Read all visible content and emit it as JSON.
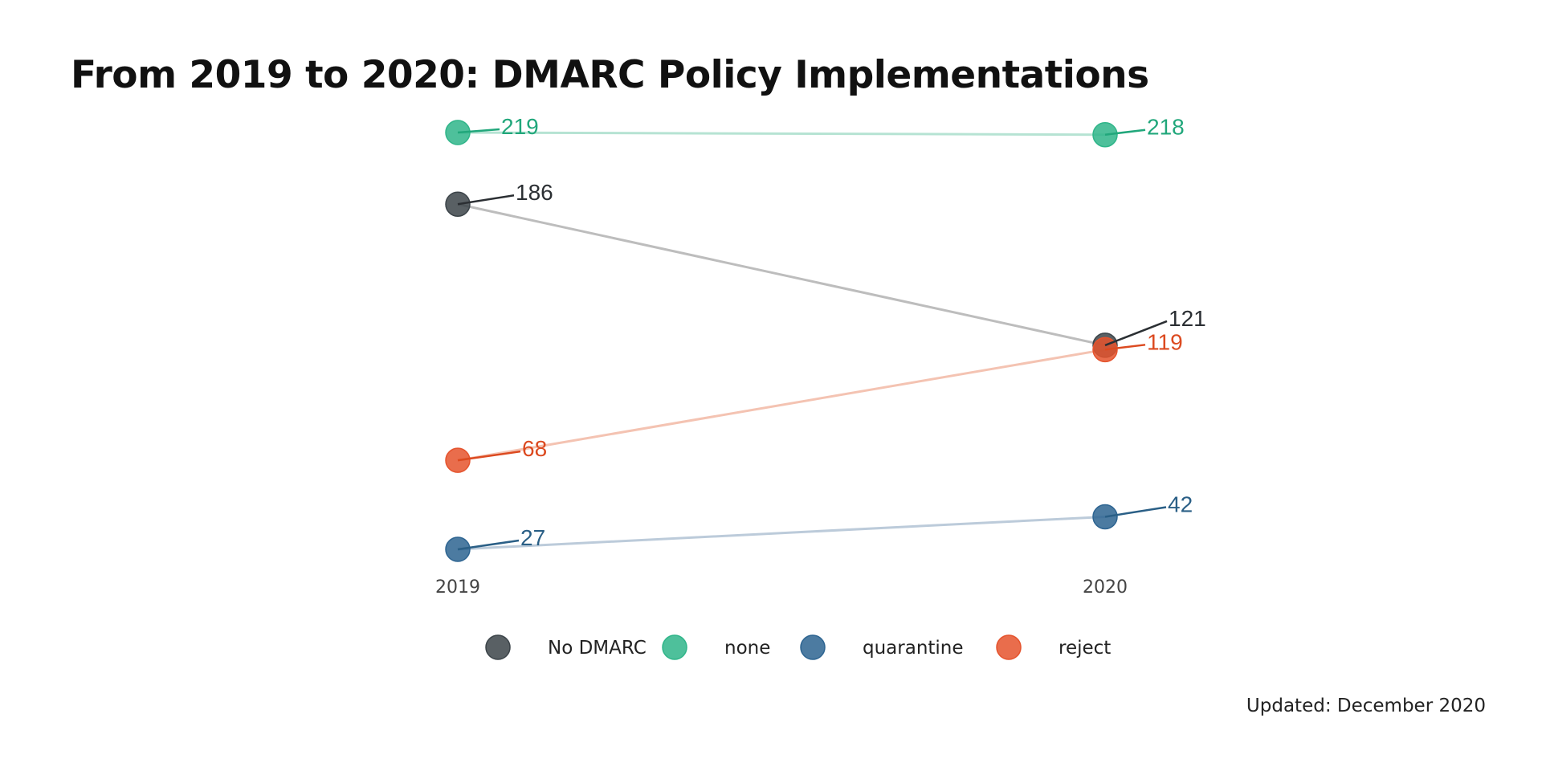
{
  "chart_data": {
    "type": "line",
    "title": "From 2019 to 2020: DMARC Policy Implementations",
    "x": [
      "2019",
      "2020"
    ],
    "series": [
      {
        "name": "No DMARC",
        "values": [
          186,
          121
        ],
        "color": "#3c4449",
        "line_color": "#bdbdbd",
        "label_color": "#2b2f33"
      },
      {
        "name": "none",
        "values": [
          219,
          218
        ],
        "color": "#2fb589",
        "line_color": "#b6e3d3",
        "label_color": "#21a77b"
      },
      {
        "name": "quarantine",
        "values": [
          27,
          42
        ],
        "color": "#2d6491",
        "line_color": "#bccbda",
        "label_color": "#2a5f86"
      },
      {
        "name": "reject",
        "values": [
          68,
          119
        ],
        "color": "#e5532d",
        "line_color": "#f4c3b2",
        "label_color": "#dc4a20"
      }
    ],
    "legend": "bottom",
    "grid": false
  },
  "caption": "Updated: December 2020"
}
